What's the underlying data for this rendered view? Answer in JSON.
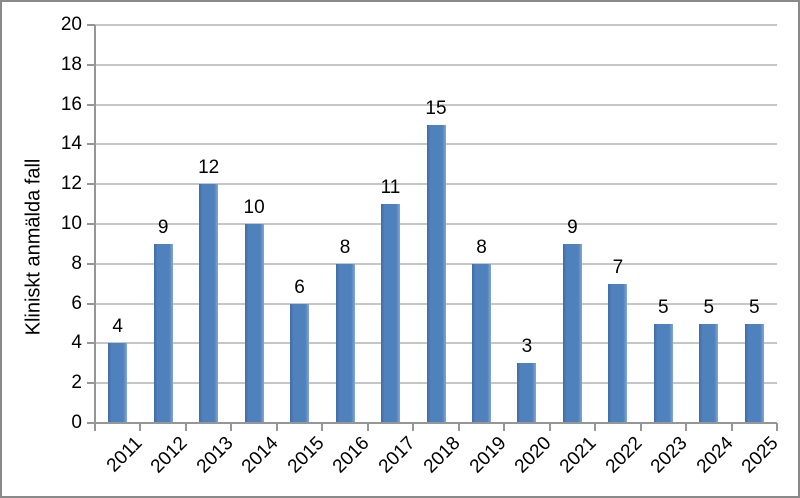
{
  "chart_data": {
    "type": "bar",
    "title": "",
    "categories": [
      "2011",
      "2012",
      "2013",
      "2014",
      "2015",
      "2016",
      "2017",
      "2018",
      "2019",
      "2020",
      "2021",
      "2022",
      "2023",
      "2024",
      "2025"
    ],
    "values": [
      4,
      9,
      12,
      10,
      6,
      8,
      11,
      15,
      8,
      3,
      9,
      7,
      5,
      5,
      5
    ],
    "xlabel": "",
    "ylabel": "Kliniskt anmälda fall",
    "ylim": [
      0,
      20
    ],
    "ytick_step": 2,
    "yticks": [
      0,
      2,
      4,
      6,
      8,
      10,
      12,
      14,
      16,
      18,
      20
    ],
    "grid": true,
    "legend_position": "none",
    "data_labels": true,
    "x_label_rotation_deg": 45,
    "colors": {
      "bar_fill": "#4F81BD",
      "bar_edge_dark": "#3F6CA3",
      "bar_edge_light": "#83A8D3",
      "gridline": "#C6C6C6",
      "axis": "#969696",
      "text": "#000000",
      "frame_border": "#8A8A8A",
      "background": "#FFFFFF"
    }
  }
}
